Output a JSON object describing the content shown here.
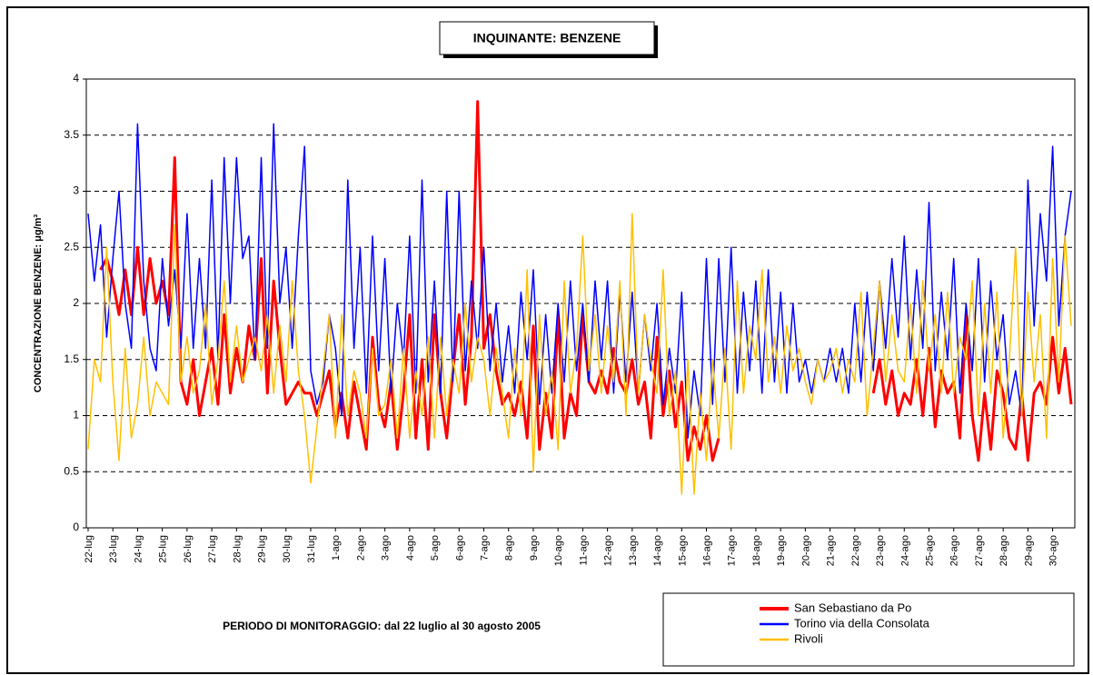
{
  "chart_data": {
    "type": "line",
    "title": "INQUINANTE: BENZENE",
    "y_label": "CONCENTRAZIONE BENZENE: μg/m³",
    "footnote": "PERIODO DI MONITORAGGIO: dal 22 luglio al 30 agosto 2005",
    "ylim": [
      0,
      4
    ],
    "yticks": [
      0,
      0.5,
      1,
      1.5,
      2,
      2.5,
      3,
      3.5,
      4
    ],
    "grid": true,
    "legend": "lower-right",
    "categories": [
      "22-lug",
      null,
      null,
      null,
      "23-lug",
      null,
      null,
      null,
      "24-lug",
      null,
      null,
      null,
      "25-lug",
      null,
      null,
      null,
      "26-lug",
      null,
      null,
      null,
      "27-lug",
      null,
      null,
      null,
      "28-lug",
      null,
      null,
      null,
      "29-lug",
      null,
      null,
      null,
      "30-lug",
      null,
      null,
      null,
      "31-lug",
      null,
      null,
      null,
      "1-ago",
      null,
      null,
      null,
      "2-ago",
      null,
      null,
      null,
      "3-ago",
      null,
      null,
      null,
      "4-ago",
      null,
      null,
      null,
      "5-ago",
      null,
      null,
      null,
      "6-ago",
      null,
      null,
      null,
      "7-ago",
      null,
      null,
      null,
      "8-ago",
      null,
      null,
      null,
      "9-ago",
      null,
      null,
      null,
      "10-ago",
      null,
      null,
      null,
      "11-ago",
      null,
      null,
      null,
      "12-ago",
      null,
      null,
      null,
      "13-ago",
      null,
      null,
      null,
      "14-ago",
      null,
      null,
      null,
      "15-ago",
      null,
      null,
      null,
      "16-ago",
      null,
      null,
      null,
      "17-ago",
      null,
      null,
      null,
      "18-ago",
      null,
      null,
      null,
      "19-ago",
      null,
      null,
      null,
      "20-ago",
      null,
      null,
      null,
      "21-ago",
      null,
      null,
      null,
      "22-ago",
      null,
      null,
      null,
      "23-ago",
      null,
      null,
      null,
      "24-ago",
      null,
      null,
      null,
      "25-ago",
      null,
      null,
      null,
      "26-ago",
      null,
      null,
      null,
      "27-ago",
      null,
      null,
      null,
      "28-ago",
      null,
      null,
      null,
      "29-ago",
      null,
      null,
      null,
      "30-ago",
      null,
      null,
      null
    ],
    "series": [
      {
        "name": "San Sebastiano da Po",
        "color": "#ff0000",
        "width": 3,
        "values": [
          null,
          null,
          2.3,
          2.4,
          2.2,
          1.9,
          2.3,
          1.9,
          2.5,
          1.9,
          2.4,
          2.0,
          2.2,
          1.9,
          3.3,
          1.3,
          1.1,
          1.5,
          1.0,
          1.3,
          1.6,
          1.1,
          1.9,
          1.2,
          1.6,
          1.3,
          1.8,
          1.5,
          2.4,
          1.2,
          2.2,
          1.6,
          1.1,
          1.2,
          1.3,
          1.2,
          1.2,
          1.0,
          1.2,
          1.4,
          0.9,
          1.2,
          0.8,
          1.3,
          1.0,
          0.7,
          1.7,
          1.1,
          0.9,
          1.3,
          0.7,
          1.2,
          1.9,
          0.8,
          1.5,
          0.7,
          1.9,
          1.2,
          0.8,
          1.4,
          1.9,
          1.1,
          1.7,
          3.8,
          1.6,
          1.9,
          1.4,
          1.1,
          1.2,
          1.0,
          1.3,
          0.8,
          1.8,
          0.7,
          1.2,
          0.8,
          1.9,
          0.8,
          1.2,
          1.0,
          1.9,
          1.3,
          1.2,
          1.4,
          1.2,
          1.6,
          1.3,
          1.2,
          1.5,
          1.1,
          1.3,
          0.8,
          1.7,
          1.0,
          1.4,
          0.9,
          1.3,
          0.6,
          0.9,
          0.7,
          1.0,
          0.6,
          0.8,
          null,
          null,
          null,
          null,
          null,
          null,
          null,
          null,
          null,
          null,
          null,
          null,
          null,
          null,
          null,
          null,
          null,
          null,
          null,
          null,
          null,
          null,
          null,
          null,
          1.2,
          1.5,
          1.1,
          1.4,
          1.0,
          1.2,
          1.1,
          1.5,
          1.0,
          1.6,
          0.9,
          1.4,
          1.2,
          1.3,
          0.8,
          1.9,
          1.0,
          0.6,
          1.2,
          0.7,
          1.4,
          1.2,
          0.8,
          0.7,
          1.2,
          0.6,
          1.2,
          1.3,
          1.1,
          1.7,
          1.2,
          1.6,
          1.1
        ]
      },
      {
        "name": "Torino via della Consolata",
        "color": "#0000ff",
        "width": 1.5,
        "values": [
          2.8,
          2.2,
          2.7,
          1.7,
          2.4,
          3.0,
          2.0,
          1.6,
          3.6,
          2.2,
          1.6,
          1.4,
          2.4,
          1.8,
          2.3,
          1.6,
          2.8,
          1.6,
          2.4,
          1.6,
          3.1,
          1.5,
          3.3,
          2.0,
          3.3,
          2.4,
          2.6,
          1.5,
          3.3,
          1.6,
          3.6,
          2.0,
          2.5,
          1.6,
          2.6,
          3.4,
          1.4,
          1.1,
          1.3,
          1.9,
          1.6,
          1.0,
          3.1,
          1.6,
          2.5,
          1.2,
          2.6,
          1.4,
          2.4,
          1.2,
          2.0,
          1.5,
          2.6,
          1.2,
          3.1,
          1.3,
          2.2,
          1.2,
          3.0,
          1.3,
          3.0,
          1.4,
          2.2,
          1.6,
          2.5,
          1.4,
          2.0,
          1.3,
          1.8,
          1.2,
          2.1,
          1.5,
          2.3,
          1.1,
          1.9,
          1.2,
          2.0,
          1.3,
          2.2,
          1.4,
          2.0,
          1.3,
          2.2,
          1.5,
          2.2,
          1.2,
          2.1,
          1.3,
          2.1,
          1.2,
          1.9,
          1.4,
          2.0,
          1.1,
          1.6,
          1.2,
          2.1,
          0.8,
          1.4,
          1.0,
          2.4,
          1.1,
          2.4,
          1.3,
          2.5,
          1.2,
          2.1,
          1.4,
          2.2,
          1.2,
          2.3,
          1.3,
          2.1,
          1.2,
          2.0,
          1.3,
          1.5,
          1.2,
          1.5,
          1.3,
          1.6,
          1.3,
          1.6,
          1.2,
          2.0,
          1.3,
          2.1,
          1.4,
          2.2,
          1.6,
          2.4,
          1.7,
          2.6,
          1.5,
          2.3,
          1.6,
          2.9,
          1.4,
          2.1,
          1.5,
          2.4,
          1.2,
          2.0,
          1.4,
          2.4,
          1.3,
          2.2,
          1.5,
          1.9,
          1.1,
          1.4,
          1.0,
          3.1,
          1.8,
          2.8,
          2.2,
          3.4,
          1.8,
          2.6,
          3.0
        ]
      },
      {
        "name": "Rivoli",
        "color": "#ffc000",
        "width": 1.5,
        "values": [
          0.7,
          1.5,
          1.3,
          2.5,
          1.3,
          0.6,
          1.6,
          0.8,
          1.1,
          1.7,
          1.0,
          1.3,
          1.2,
          1.1,
          2.7,
          1.3,
          1.7,
          1.2,
          1.4,
          2.0,
          1.1,
          1.5,
          2.2,
          1.3,
          1.8,
          1.3,
          1.5,
          1.7,
          1.4,
          1.9,
          1.2,
          1.8,
          1.3,
          2.2,
          1.4,
          1.0,
          0.4,
          0.9,
          1.4,
          1.9,
          0.8,
          1.9,
          1.0,
          1.4,
          1.2,
          0.8,
          1.6,
          1.0,
          1.1,
          1.5,
          0.8,
          1.6,
          0.8,
          1.4,
          1.0,
          1.7,
          0.8,
          1.7,
          1.0,
          1.5,
          1.2,
          2.0,
          1.3,
          1.7,
          1.5,
          1.0,
          1.6,
          1.2,
          0.8,
          1.6,
          1.0,
          2.3,
          0.5,
          1.9,
          1.0,
          1.4,
          0.7,
          2.2,
          1.2,
          1.6,
          2.6,
          1.4,
          1.9,
          1.2,
          1.8,
          1.3,
          2.2,
          1.0,
          2.8,
          1.2,
          1.9,
          1.5,
          1.2,
          2.3,
          1.0,
          1.4,
          0.3,
          1.5,
          0.3,
          1.2,
          0.6,
          1.5,
          0.8,
          1.6,
          0.7,
          2.2,
          1.2,
          1.8,
          1.5,
          2.3,
          1.3,
          1.7,
          1.2,
          1.8,
          1.4,
          1.6,
          1.3,
          1.1,
          1.5,
          1.3,
          1.4,
          1.6,
          1.2,
          1.5,
          1.3,
          2.1,
          1.0,
          1.6,
          2.2,
          1.3,
          1.9,
          1.4,
          1.3,
          2.0,
          1.2,
          2.2,
          1.4,
          1.9,
          1.2,
          2.1,
          1.2,
          1.7,
          1.5,
          2.2,
          1.0,
          2.0,
          1.2,
          2.1,
          0.8,
          1.5,
          2.5,
          1.0,
          2.1,
          1.3,
          1.9,
          0.8,
          2.4,
          1.3,
          2.6,
          1.8
        ]
      }
    ]
  }
}
